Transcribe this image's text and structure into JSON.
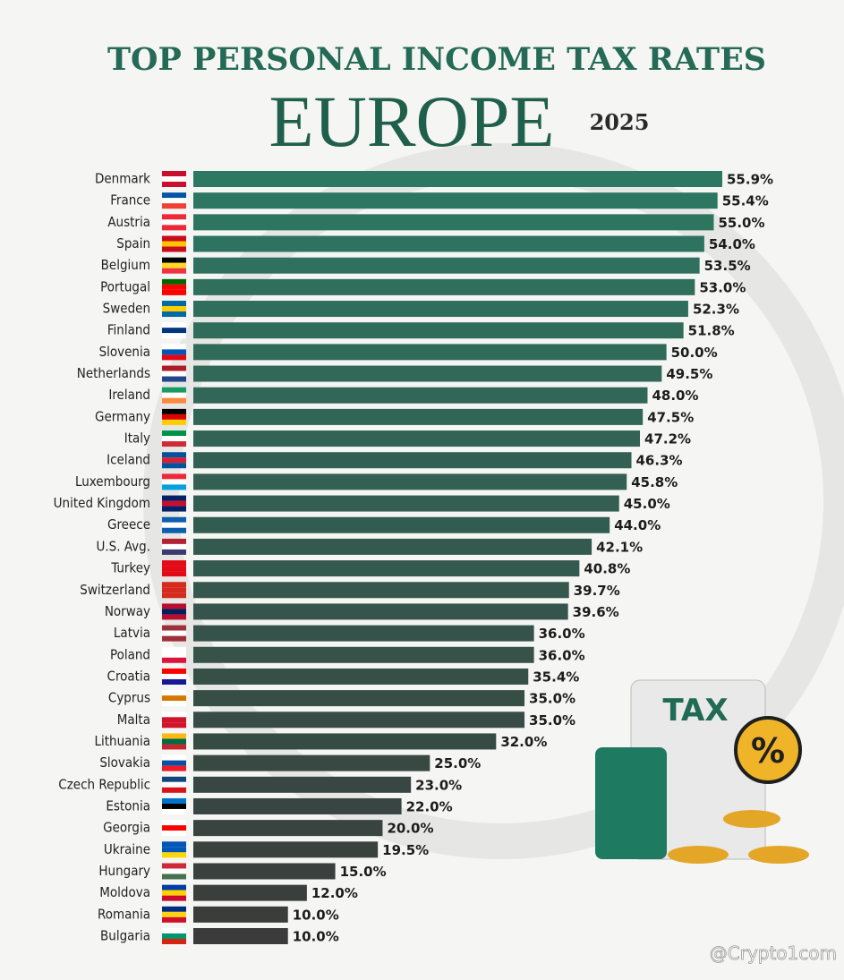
{
  "chart_data": {
    "type": "bar",
    "orientation": "horizontal",
    "title": "TOP PERSONAL INCOME TAX RATES",
    "subtitle": "EUROPE",
    "year": "2025",
    "categories": [
      "Denmark",
      "France",
      "Austria",
      "Spain",
      "Belgium",
      "Portugal",
      "Sweden",
      "Finland",
      "Slovenia",
      "Netherlands",
      "Ireland",
      "Germany",
      "Italy",
      "Iceland",
      "Luxembourg",
      "United Kingdom",
      "Greece",
      "U.S. Avg.",
      "Turkey",
      "Switzerland",
      "Norway",
      "Latvia",
      "Poland",
      "Croatia",
      "Cyprus",
      "Malta",
      "Lithuania",
      "Slovakia",
      "Czech Republic",
      "Estonia",
      "Georgia",
      "Ukraine",
      "Hungary",
      "Moldova",
      "Romania",
      "Bulgaria"
    ],
    "values": [
      55.9,
      55.4,
      55.0,
      54.0,
      53.5,
      53.0,
      52.3,
      51.8,
      50.0,
      49.5,
      48.0,
      47.5,
      47.2,
      46.3,
      45.8,
      45.0,
      44.0,
      42.1,
      40.8,
      39.7,
      39.6,
      36.0,
      36.0,
      35.4,
      35.0,
      35.0,
      32.0,
      25.0,
      23.0,
      22.0,
      20.0,
      19.5,
      15.0,
      12.0,
      10.0,
      10.0
    ],
    "value_labels": [
      "55.9%",
      "55.4%",
      "55.0%",
      "54.0%",
      "53.5%",
      "53.0%",
      "52.3%",
      "51.8%",
      "50.0%",
      "49.5%",
      "48.0%",
      "47.5%",
      "47.2%",
      "46.3%",
      "45.8%",
      "45.0%",
      "44.0%",
      "42.1%",
      "40.8%",
      "39.7%",
      "39.6%",
      "36.0%",
      "36.0%",
      "35.4%",
      "35.0%",
      "35.0%",
      "32.0%",
      "25.0%",
      "23.0%",
      "22.0%",
      "20.0%",
      "19.5%",
      "15.0%",
      "12.0%",
      "10.0%",
      "10.0%"
    ],
    "color_top": "#2d7862",
    "color_bottom": "#3b3b3b",
    "illustration": {
      "label": "TAX",
      "symbol": "%"
    },
    "watermark": "@Crypto1com"
  }
}
